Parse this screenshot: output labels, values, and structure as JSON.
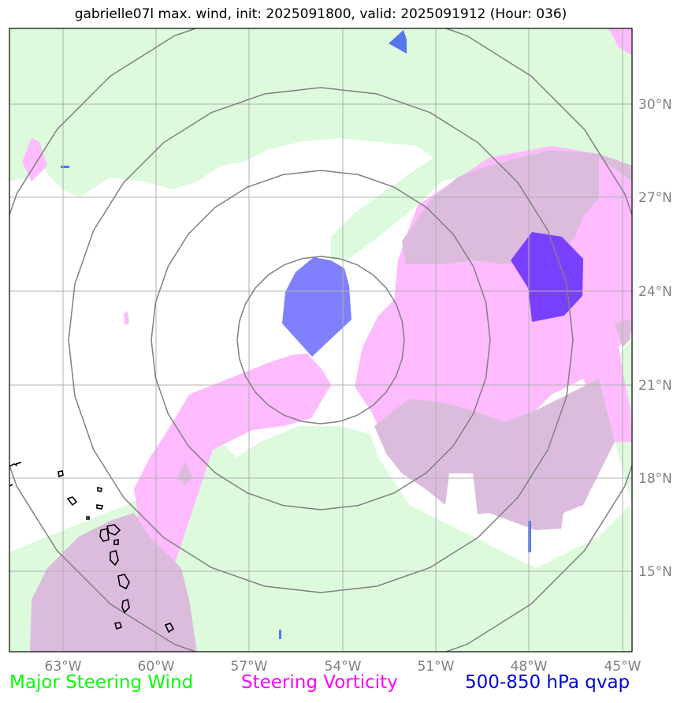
{
  "title": "gabrielle07l max. wind, init: 2025091800, valid: 2025091912 (Hour: 036)",
  "lon_labels": [
    "63°W",
    "60°W",
    "57°W",
    "54°W",
    "51°W",
    "48°W",
    "45°W"
  ],
  "lat_labels": [
    "30°N",
    "27°N",
    "24°N",
    "21°N",
    "18°N",
    "15°N"
  ],
  "legend": {
    "wind": {
      "label": "Major Steering Wind",
      "color": "#00ff00"
    },
    "vorticity": {
      "label": "Steering Vorticity",
      "color": "#ff00ff"
    },
    "qvap": {
      "label": "500-850 hPa qvap",
      "color": "#0000dd"
    }
  },
  "colors": {
    "wind_fill": "#ddfadd",
    "vorticity_fill": "#ffbbff",
    "overlap_fill": "#dcbcdc",
    "qvap_fill": "#8080ff",
    "qvap_strong_fill": "#7a40ff",
    "range_rings": "#808080",
    "gridlines": "#b0b0b0",
    "coastline": "#000000"
  },
  "icons": {
    "coastline": "lesser-antilles-coastline"
  }
}
